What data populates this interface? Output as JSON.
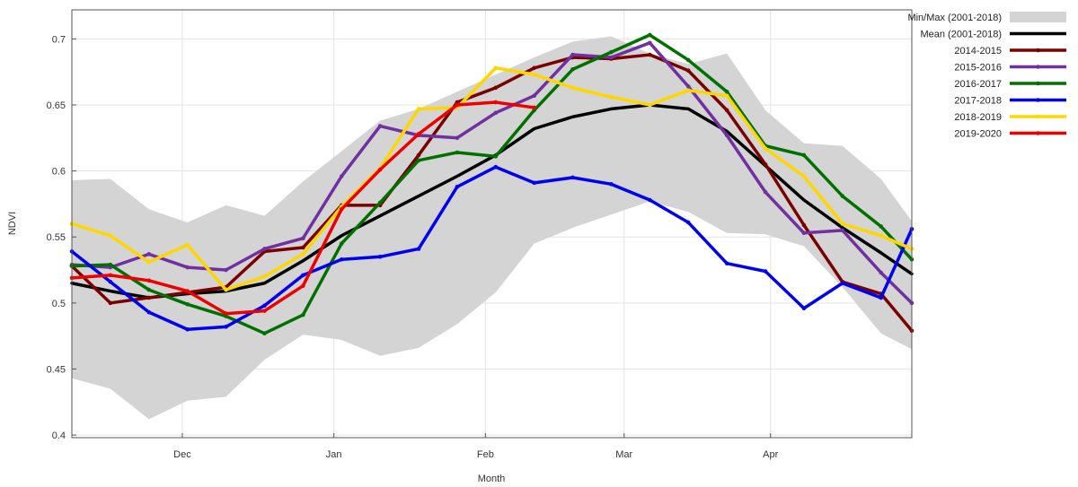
{
  "chart_data": {
    "type": "line",
    "title": "",
    "xlabel": "Month",
    "ylabel": "NDVI",
    "ylim": [
      0.398,
      0.722
    ],
    "xlim": [
      0,
      16.35
    ],
    "y_ticks": [
      0.4,
      0.45,
      0.5,
      0.55,
      0.6,
      0.65,
      0.7
    ],
    "y_tick_labels": [
      "0.4",
      "0.45",
      "0.5",
      "0.55",
      "0.6",
      "0.65",
      "0.7"
    ],
    "x_ticks": [
      2.15,
      5.1,
      8.05,
      10.75,
      13.6
    ],
    "x_tick_labels": [
      "Dec",
      "Jan",
      "Feb",
      "Mar",
      "Apr"
    ],
    "grid": true,
    "legend_position": "top-right",
    "x": [
      0,
      0.75,
      1.5,
      2.25,
      3,
      3.75,
      4.5,
      5.25,
      6,
      6.75,
      7.5,
      8.25,
      9,
      9.75,
      10.5,
      11.25,
      12,
      12.75,
      13.5,
      14.25,
      15,
      15.75,
      16.35
    ],
    "band": {
      "name": "Min/Max (2001-2018)",
      "color": "#d4d4d4",
      "x": [
        0,
        0.75,
        1.5,
        2.25,
        3,
        3.75,
        4.5,
        5.25,
        6,
        6.75,
        7.5,
        8.25,
        9,
        9.75,
        10.5,
        11.25,
        12,
        12.75,
        13.5,
        14.25,
        15,
        15.75,
        16.35
      ],
      "upper": [
        0.593,
        0.594,
        0.571,
        0.561,
        0.574,
        0.566,
        0.592,
        0.615,
        0.638,
        0.647,
        0.66,
        0.673,
        0.686,
        0.698,
        0.702,
        0.689,
        0.681,
        0.689,
        0.646,
        0.621,
        0.619,
        0.594,
        0.562
      ],
      "lower": [
        0.443,
        0.435,
        0.412,
        0.426,
        0.429,
        0.457,
        0.476,
        0.472,
        0.46,
        0.466,
        0.484,
        0.508,
        0.545,
        0.557,
        0.567,
        0.577,
        0.569,
        0.553,
        0.552,
        0.543,
        0.512,
        0.477,
        0.465
      ]
    },
    "series": [
      {
        "name": "Mean (2001-2018)",
        "color": "#000000",
        "markers": false,
        "values": [
          0.515,
          0.509,
          0.504,
          0.507,
          0.509,
          0.515,
          0.532,
          0.551,
          0.566,
          0.581,
          0.596,
          0.612,
          0.632,
          0.641,
          0.647,
          0.65,
          0.647,
          0.63,
          0.604,
          0.578,
          0.557,
          0.538,
          0.522
        ]
      },
      {
        "name": "2014-2015",
        "color": "#7a0000",
        "markers": true,
        "values": [
          0.528,
          0.5,
          0.504,
          0.508,
          0.512,
          0.539,
          0.542,
          0.574,
          0.574,
          0.612,
          0.652,
          0.663,
          0.678,
          0.686,
          0.685,
          0.688,
          0.676,
          0.646,
          0.605,
          0.559,
          0.516,
          0.507,
          0.479
        ]
      },
      {
        "name": "2015-2016",
        "color": "#7030a0",
        "markers": true,
        "values": [
          0.529,
          0.527,
          0.537,
          0.527,
          0.525,
          0.541,
          0.549,
          0.596,
          0.634,
          0.627,
          0.625,
          0.644,
          0.657,
          0.688,
          0.686,
          0.697,
          0.664,
          0.627,
          0.584,
          0.553,
          0.555,
          0.523,
          0.5
        ]
      },
      {
        "name": "2016-2017",
        "color": "#007000",
        "markers": true,
        "values": [
          0.528,
          0.529,
          0.51,
          0.499,
          0.49,
          0.477,
          0.491,
          0.545,
          0.576,
          0.608,
          0.614,
          0.611,
          0.646,
          0.677,
          0.69,
          0.703,
          0.684,
          0.66,
          0.619,
          0.612,
          0.581,
          0.558,
          0.533
        ]
      },
      {
        "name": "2017-2018",
        "color": "#0000ee",
        "markers": true,
        "values": [
          0.539,
          0.516,
          0.493,
          0.48,
          0.482,
          0.498,
          0.521,
          0.533,
          0.535,
          0.541,
          0.588,
          0.603,
          0.591,
          0.595,
          0.59,
          0.578,
          0.561,
          0.53,
          0.524,
          0.496,
          0.515,
          0.504,
          0.556
        ]
      },
      {
        "name": "2018-2019",
        "color": "#ffd700",
        "markers": true,
        "values": [
          0.56,
          0.551,
          0.531,
          0.544,
          0.51,
          0.52,
          0.537,
          0.573,
          0.602,
          0.647,
          0.648,
          0.678,
          0.673,
          0.663,
          0.656,
          0.65,
          0.661,
          0.657,
          0.617,
          0.596,
          0.56,
          0.551,
          0.541
        ]
      },
      {
        "name": "2019-2020",
        "color": "#ee0000",
        "markers": true,
        "values": [
          0.519,
          0.521,
          0.517,
          0.509,
          0.492,
          0.494,
          0.513,
          0.571,
          0.601,
          0.628,
          0.65,
          0.652,
          0.648,
          null,
          null,
          null,
          null,
          null,
          null,
          null,
          null,
          null,
          null
        ]
      }
    ]
  }
}
